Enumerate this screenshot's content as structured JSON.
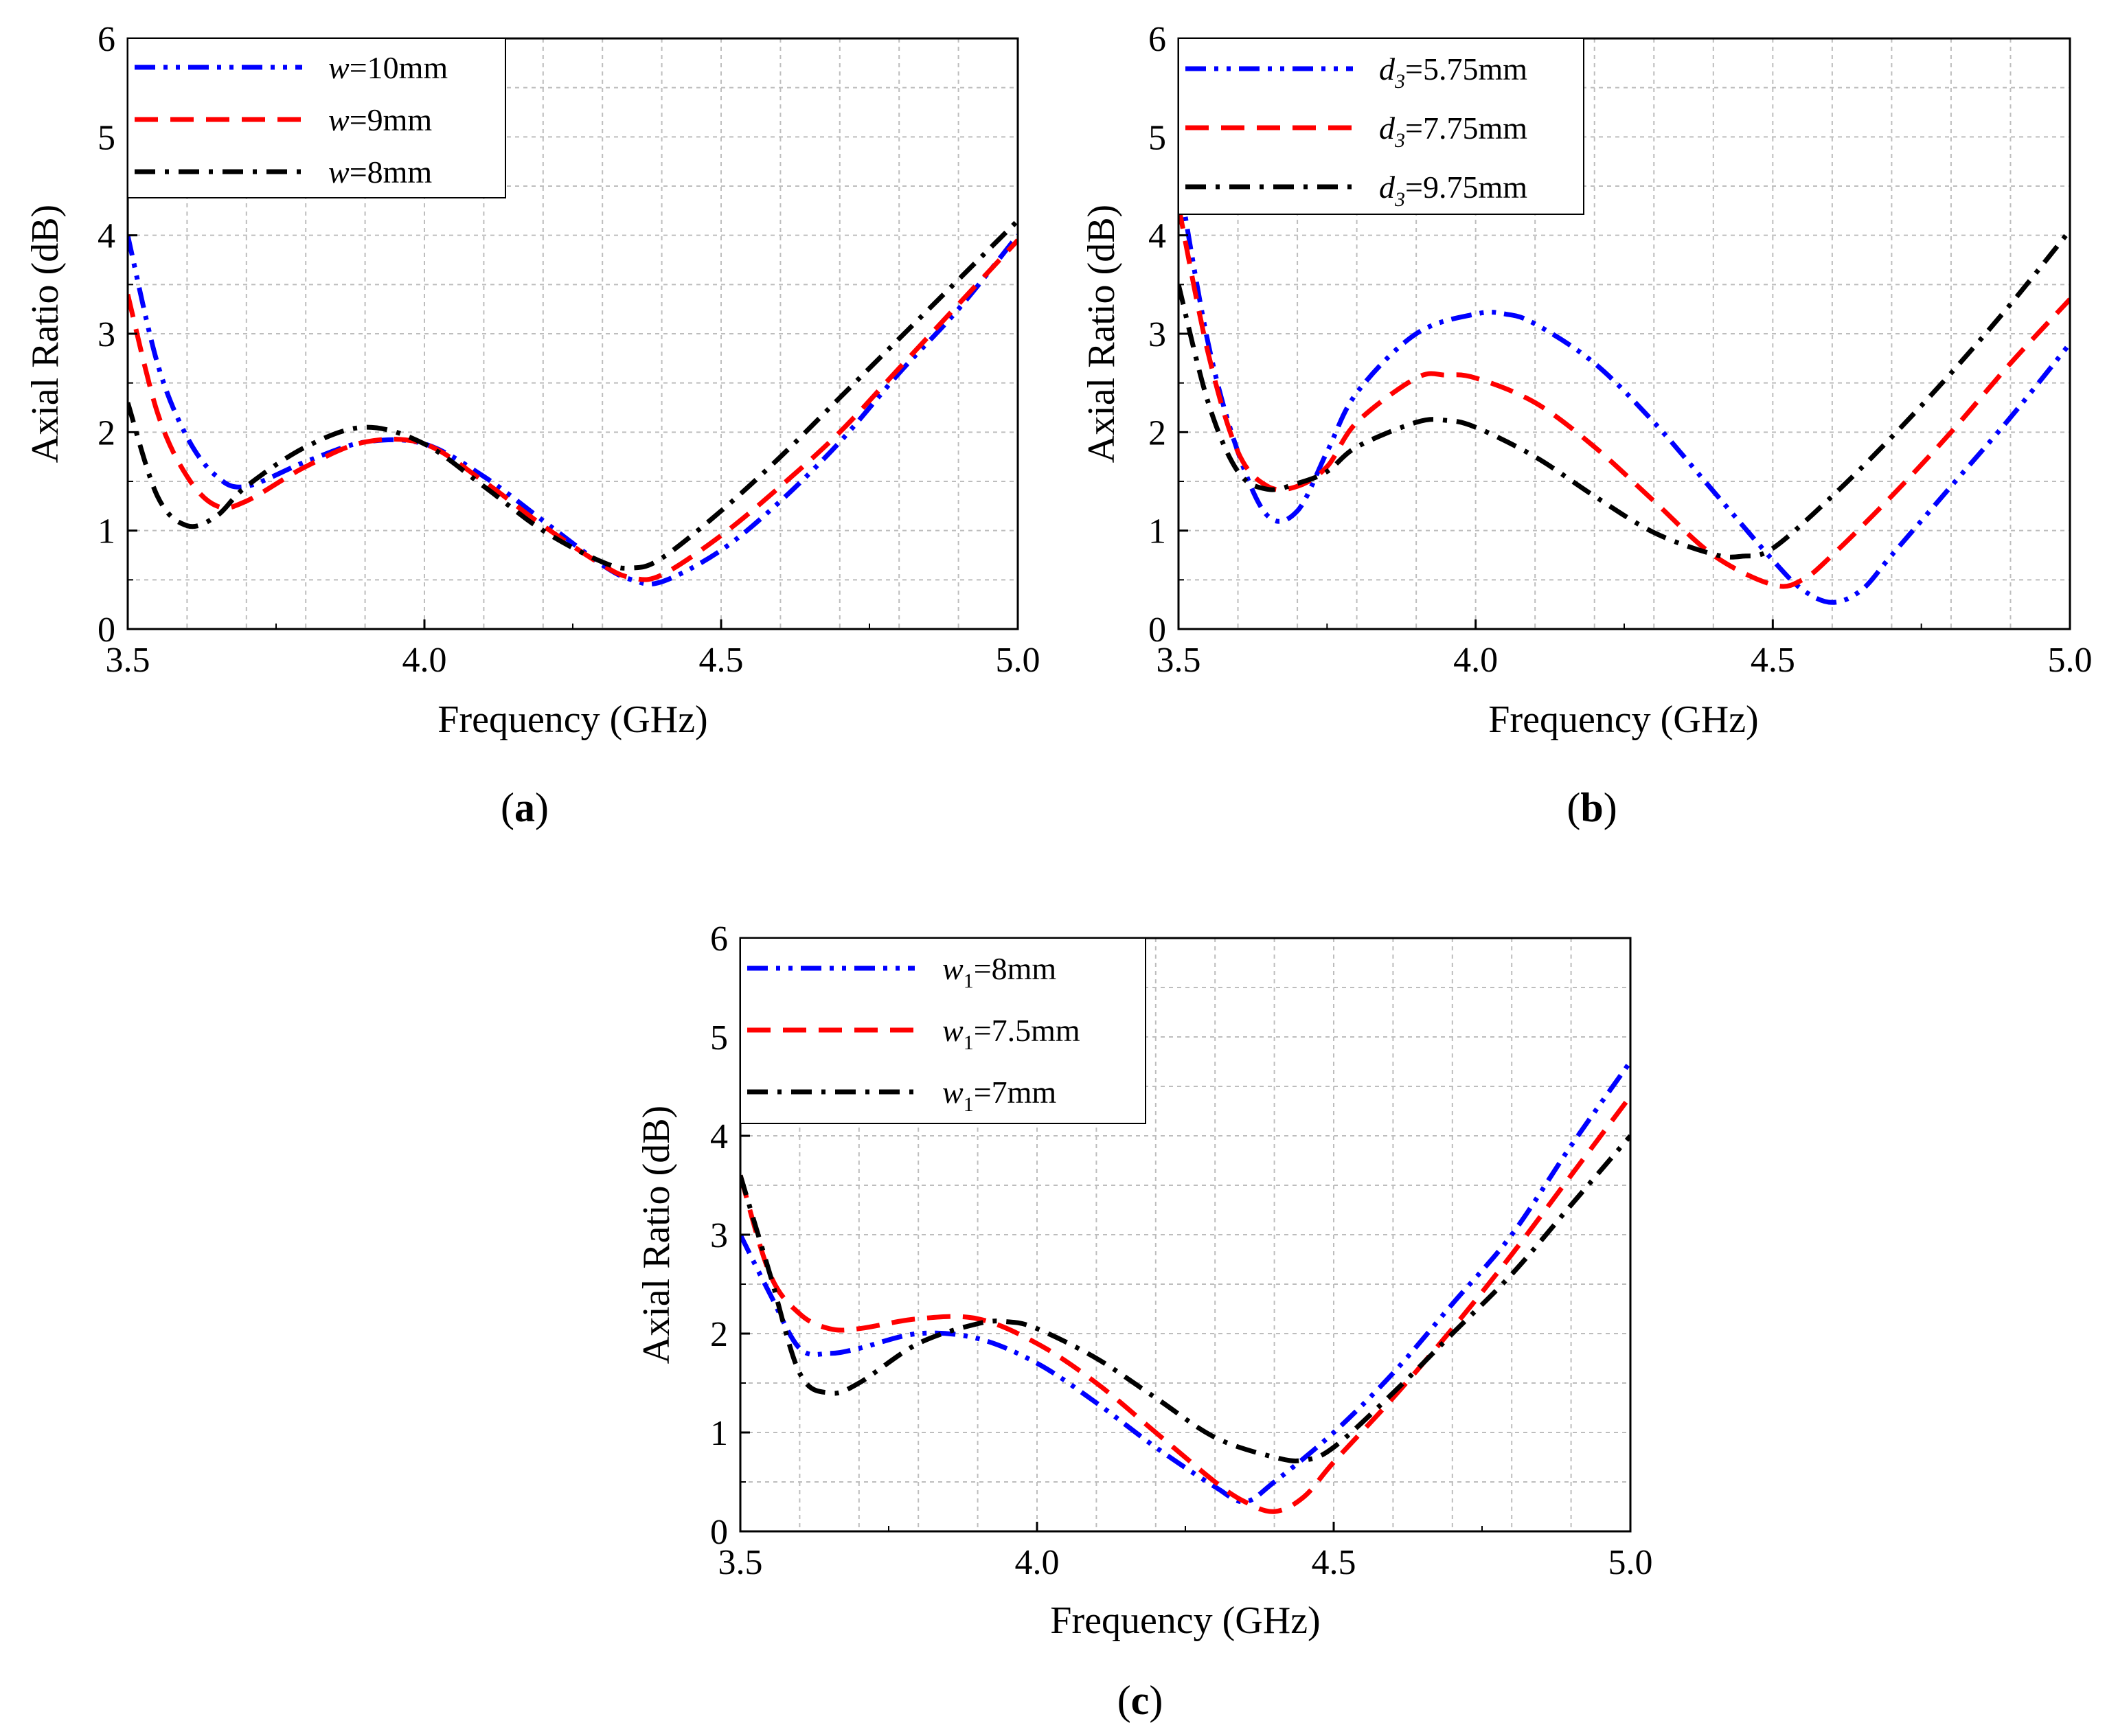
{
  "figure": {
    "panels": [
      "a",
      "b",
      "c"
    ]
  },
  "chart_data": [
    {
      "type": "line",
      "panel_label": "a",
      "xlabel": "Frequency (GHz)",
      "ylabel": "Axial Ratio (dB)",
      "xlim": [
        3.5,
        5.0
      ],
      "ylim": [
        0,
        6
      ],
      "xticks": [
        "3.5",
        "4.0",
        "4.5",
        "5.0"
      ],
      "yticks": [
        "0",
        "1",
        "2",
        "3",
        "4",
        "5",
        "6"
      ],
      "grid": true,
      "legend_position": "top-left",
      "legend_param": "w",
      "legend_sub": "",
      "series": [
        {
          "name": "w=10mm",
          "value_text": "=10mm",
          "color": "#0000ff",
          "dash": "dash-dot-dot",
          "x": [
            3.5,
            3.55,
            3.6,
            3.65,
            3.7,
            3.8,
            3.9,
            4.0,
            4.1,
            4.2,
            4.3,
            4.35,
            4.4,
            4.5,
            4.6,
            4.7,
            4.8,
            4.9,
            5.0
          ],
          "y": [
            4.0,
            2.7,
            1.95,
            1.55,
            1.45,
            1.7,
            1.9,
            1.88,
            1.55,
            1.1,
            0.65,
            0.5,
            0.48,
            0.8,
            1.3,
            1.9,
            2.6,
            3.25,
            4.0
          ]
        },
        {
          "name": "w=9mm",
          "value_text": "=9mm",
          "color": "#ff0000",
          "dash": "dash",
          "x": [
            3.5,
            3.55,
            3.6,
            3.65,
            3.7,
            3.8,
            3.9,
            4.0,
            4.1,
            4.2,
            4.3,
            4.35,
            4.4,
            4.5,
            4.6,
            4.7,
            4.8,
            4.9,
            5.0
          ],
          "y": [
            3.4,
            2.2,
            1.55,
            1.25,
            1.3,
            1.65,
            1.9,
            1.88,
            1.5,
            1.05,
            0.65,
            0.52,
            0.55,
            0.95,
            1.45,
            2.0,
            2.65,
            3.3,
            3.95
          ]
        },
        {
          "name": "w=8mm",
          "value_text": "=8mm",
          "color": "#000000",
          "dash": "dash-dot",
          "x": [
            3.5,
            3.55,
            3.6,
            3.65,
            3.7,
            3.8,
            3.9,
            4.0,
            4.1,
            4.2,
            4.3,
            4.35,
            4.4,
            4.5,
            4.6,
            4.7,
            4.8,
            4.9,
            5.0
          ],
          "y": [
            2.3,
            1.35,
            1.05,
            1.15,
            1.45,
            1.85,
            2.05,
            1.88,
            1.45,
            1.0,
            0.68,
            0.62,
            0.72,
            1.2,
            1.75,
            2.35,
            2.95,
            3.55,
            4.15
          ]
        }
      ]
    },
    {
      "type": "line",
      "panel_label": "b",
      "xlabel": "Frequency (GHz)",
      "ylabel": "Axial Ratio (dB)",
      "xlim": [
        3.5,
        5.0
      ],
      "ylim": [
        0,
        6
      ],
      "xticks": [
        "3.5",
        "4.0",
        "4.5",
        "5.0"
      ],
      "yticks": [
        "0",
        "1",
        "2",
        "3",
        "4",
        "5",
        "6"
      ],
      "grid": true,
      "legend_position": "top-left",
      "legend_param": "d",
      "legend_sub": "3",
      "series": [
        {
          "name": "d3=5.75mm",
          "value_text": "=5.75mm",
          "color": "#0000ff",
          "dash": "dash-dot-dot",
          "x": [
            3.5,
            3.55,
            3.6,
            3.65,
            3.7,
            3.75,
            3.8,
            3.9,
            4.0,
            4.05,
            4.1,
            4.2,
            4.3,
            4.4,
            4.5,
            4.55,
            4.6,
            4.65,
            4.7,
            4.8,
            4.9,
            5.0
          ],
          "y": [
            4.6,
            2.9,
            1.8,
            1.15,
            1.2,
            1.8,
            2.4,
            3.0,
            3.2,
            3.2,
            3.1,
            2.7,
            2.1,
            1.4,
            0.7,
            0.4,
            0.27,
            0.4,
            0.75,
            1.45,
            2.15,
            2.9
          ]
        },
        {
          "name": "d3=7.75mm",
          "value_text": "=7.75mm",
          "color": "#ff0000",
          "dash": "dash",
          "x": [
            3.5,
            3.55,
            3.6,
            3.65,
            3.7,
            3.75,
            3.8,
            3.9,
            3.95,
            4.0,
            4.1,
            4.2,
            4.3,
            4.4,
            4.5,
            4.55,
            4.6,
            4.7,
            4.8,
            4.9,
            5.0
          ],
          "y": [
            4.3,
            2.8,
            1.8,
            1.45,
            1.45,
            1.65,
            2.1,
            2.55,
            2.58,
            2.55,
            2.3,
            1.85,
            1.3,
            0.75,
            0.45,
            0.5,
            0.75,
            1.35,
            2.0,
            2.7,
            3.35
          ]
        },
        {
          "name": "d3=9.75mm",
          "value_text": "=9.75mm",
          "color": "#000000",
          "dash": "dash-dot",
          "x": [
            3.5,
            3.55,
            3.6,
            3.65,
            3.7,
            3.75,
            3.8,
            3.9,
            3.95,
            4.0,
            4.1,
            4.2,
            4.3,
            4.4,
            4.45,
            4.5,
            4.6,
            4.7,
            4.8,
            4.9,
            5.0
          ],
          "y": [
            3.5,
            2.3,
            1.6,
            1.42,
            1.48,
            1.6,
            1.85,
            2.1,
            2.12,
            2.05,
            1.75,
            1.35,
            0.98,
            0.76,
            0.74,
            0.82,
            1.35,
            1.95,
            2.6,
            3.3,
            4.05
          ]
        }
      ]
    },
    {
      "type": "line",
      "panel_label": "c",
      "xlabel": "Frequency (GHz)",
      "ylabel": "Axial Ratio (dB)",
      "xlim": [
        3.5,
        5.0
      ],
      "ylim": [
        0,
        6
      ],
      "xticks": [
        "3.5",
        "4.0",
        "4.5",
        "5.0"
      ],
      "yticks": [
        "0",
        "1",
        "2",
        "3",
        "4",
        "5",
        "6"
      ],
      "grid": true,
      "legend_position": "top-left",
      "legend_param": "w",
      "legend_sub": "1",
      "series": [
        {
          "name": "w1=8mm",
          "value_text": "=8mm",
          "color": "#0000ff",
          "dash": "dash-dot-dot",
          "x": [
            3.5,
            3.55,
            3.6,
            3.65,
            3.7,
            3.8,
            3.9,
            4.0,
            4.1,
            4.2,
            4.3,
            4.35,
            4.4,
            4.5,
            4.6,
            4.7,
            4.8,
            4.9,
            5.0
          ],
          "y": [
            3.0,
            2.4,
            1.85,
            1.8,
            1.85,
            2.0,
            1.95,
            1.7,
            1.3,
            0.85,
            0.45,
            0.3,
            0.5,
            1.0,
            1.6,
            2.3,
            3.0,
            3.9,
            4.75
          ]
        },
        {
          "name": "w1=7.5mm",
          "value_text": "=7.5mm",
          "color": "#ff0000",
          "dash": "dash",
          "x": [
            3.5,
            3.55,
            3.6,
            3.65,
            3.7,
            3.8,
            3.9,
            4.0,
            4.1,
            4.2,
            4.3,
            4.35,
            4.4,
            4.45,
            4.5,
            4.6,
            4.7,
            4.8,
            4.9,
            5.0
          ],
          "y": [
            3.6,
            2.6,
            2.2,
            2.05,
            2.05,
            2.15,
            2.15,
            1.9,
            1.5,
            1.0,
            0.5,
            0.3,
            0.2,
            0.35,
            0.7,
            1.35,
            2.05,
            2.8,
            3.6,
            4.4
          ]
        },
        {
          "name": "w1=7mm",
          "value_text": "=7mm",
          "color": "#000000",
          "dash": "dash-dot",
          "x": [
            3.5,
            3.55,
            3.6,
            3.65,
            3.7,
            3.8,
            3.9,
            3.95,
            4.0,
            4.1,
            4.2,
            4.3,
            4.4,
            4.45,
            4.5,
            4.6,
            4.7,
            4.8,
            4.9,
            5.0
          ],
          "y": [
            3.6,
            2.6,
            1.6,
            1.4,
            1.5,
            1.9,
            2.1,
            2.12,
            2.05,
            1.75,
            1.35,
            0.95,
            0.75,
            0.72,
            0.85,
            1.4,
            2.0,
            2.6,
            3.3,
            4.0
          ]
        }
      ]
    }
  ]
}
